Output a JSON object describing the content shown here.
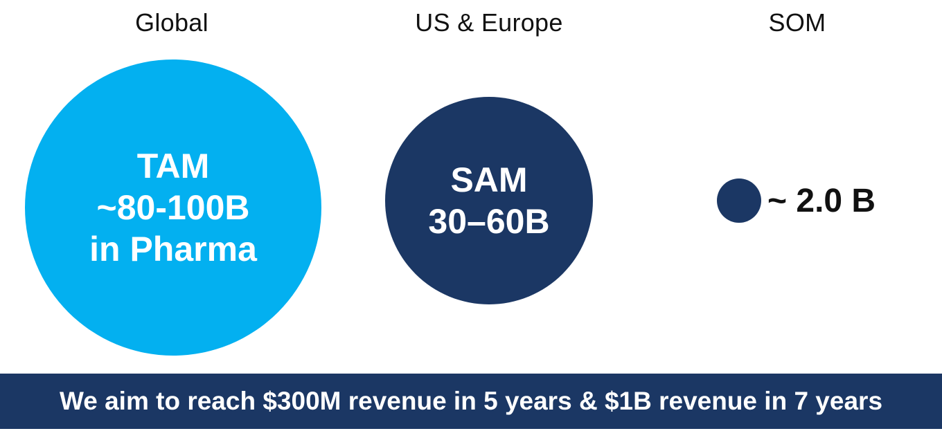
{
  "columns": {
    "global_label": "Global",
    "us_europe_label": "US & Europe",
    "som_label": "SOM"
  },
  "tam": {
    "title": "TAM",
    "value": "~80-100B",
    "segment": "in Pharma"
  },
  "sam": {
    "title": "SAM",
    "value": "30–60B"
  },
  "som": {
    "value": "~ 2.0 B"
  },
  "banner": {
    "text": "We aim to reach $300M revenue in 5 years & $1B revenue in 7 years"
  },
  "colors": {
    "tam_circle": "#03b0f0",
    "sam_circle": "#1b3764",
    "som_circle": "#1b3764",
    "banner_background": "#1b3764",
    "text_dark": "#111111",
    "text_light": "#ffffff"
  }
}
